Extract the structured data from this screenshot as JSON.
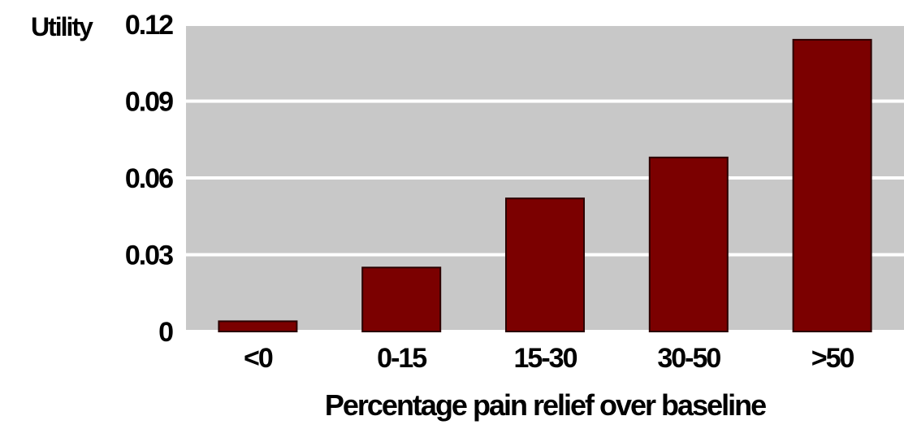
{
  "chart_data": {
    "type": "bar",
    "title": "",
    "xlabel": "Percentage pain relief over baseline",
    "ylabel": "Utility",
    "categories": [
      "<0",
      "0-15",
      "15-30",
      "30-50",
      ">50"
    ],
    "values": [
      0.004,
      0.025,
      0.052,
      0.068,
      0.114
    ],
    "ylim": [
      0,
      0.12
    ],
    "yticks": [
      "0",
      "0.03",
      "0.06",
      "0.09",
      "0.12"
    ],
    "ytick_values": [
      0,
      0.03,
      0.06,
      0.09,
      0.12
    ],
    "grid": true,
    "colors": {
      "bar": "#7b0000",
      "bar_border": "#2a0000",
      "plot_background": "#c8c8c8",
      "gridline": "#ffffff"
    }
  }
}
